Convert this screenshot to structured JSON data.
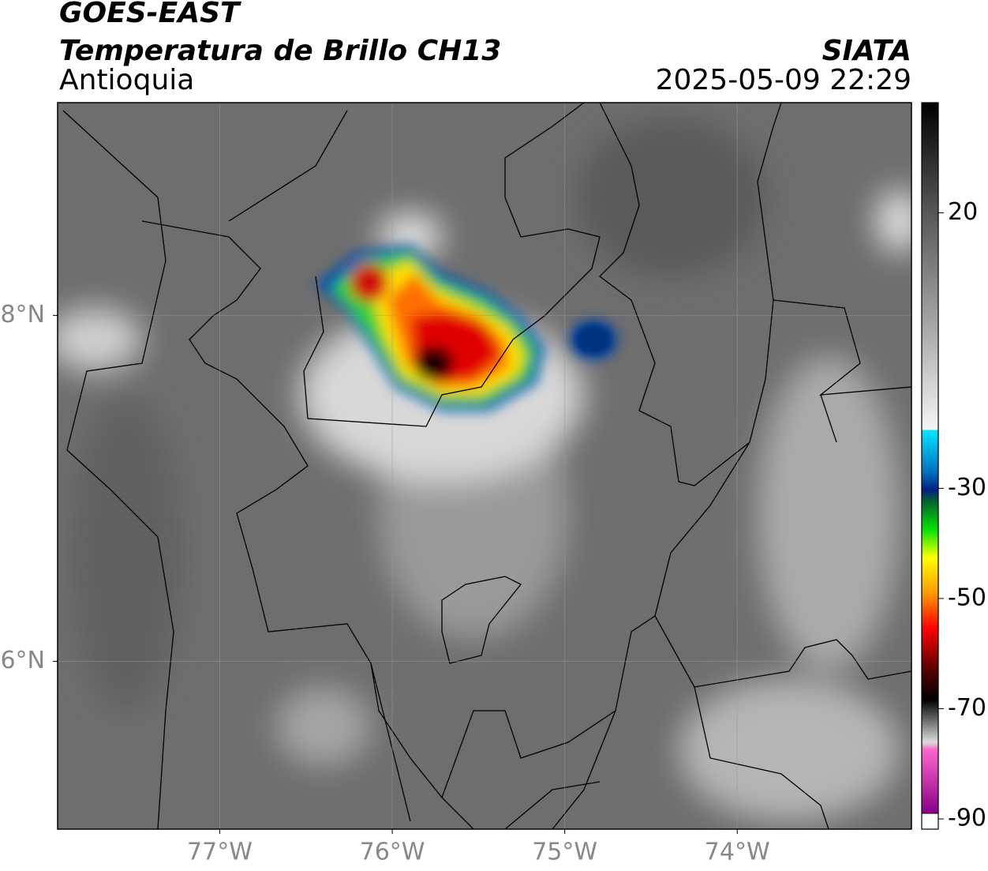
{
  "title": "GOES-EAST",
  "subtitle": "Temperatura de Brillo CH13",
  "region": "Antioquia",
  "source": "SIATA",
  "datetime": "2025-05-09 22:29",
  "map": {
    "xlim": [
      -77.94,
      -72.99
    ],
    "ylim": [
      5.03,
      9.23
    ],
    "xticks": [
      {
        "value": -77,
        "label": "77°W"
      },
      {
        "value": -76,
        "label": "76°W"
      },
      {
        "value": -75,
        "label": "75°W"
      },
      {
        "value": -74,
        "label": "74°W"
      }
    ],
    "yticks": [
      {
        "value": 8,
        "label": "8°N"
      },
      {
        "value": 6,
        "label": "6°N"
      }
    ],
    "grid": true
  },
  "colorbar": {
    "lim": [
      -90,
      40
    ],
    "ticks": [
      20,
      -30,
      -50,
      -70,
      -90
    ]
  }
}
